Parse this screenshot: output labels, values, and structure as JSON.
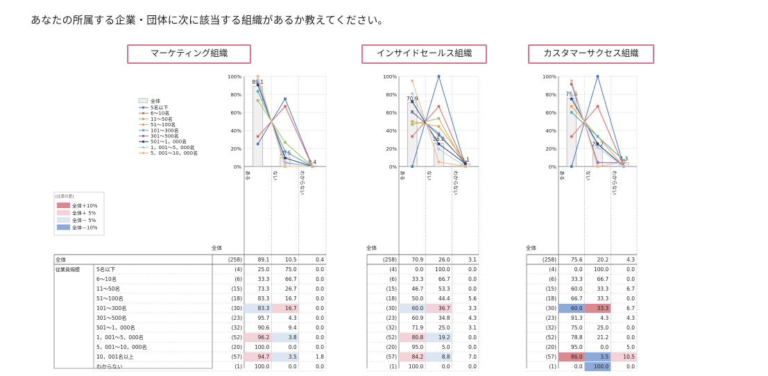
{
  "question": "あなたの所属する企業・団体に次に該当する組織があるか教えてください。",
  "legend": {
    "total_label": "全体",
    "series_labels": [
      "5名以下",
      "6～10名",
      "11～50名",
      "51～100名",
      "101～300名",
      "301～500名",
      "501～1，000名",
      "1，001～5，000名",
      "5，001～10，000名"
    ],
    "series_colors": [
      "#4472c4",
      "#e06060",
      "#9bbb59",
      "#f0a030",
      "#4bacc6",
      "#8064a2",
      "#1f3b6e",
      "#a8c8e8",
      "#f4b183"
    ]
  },
  "diff_legend": {
    "title": "[比率の差]",
    "items": [
      {
        "label": "全体＋10%",
        "color": "#d9898f"
      },
      {
        "label": "全体＋ 5%",
        "color": "#f2d4d8"
      },
      {
        "label": "全体－ 5%",
        "color": "#dce6f2"
      },
      {
        "label": "全体－10%",
        "color": "#8eaadb"
      }
    ]
  },
  "colors": {
    "frame": "#d9728c",
    "hi10": "#d9898f",
    "hi5": "#f2d4d8",
    "lo5": "#dce6f2",
    "lo10": "#8eaadb",
    "total_bar": "#f0f0f0"
  },
  "table_labels": {
    "zentai": "全体",
    "zentai_row": "全体",
    "group_label": "従業員規模",
    "rows": [
      "5名以下",
      "6～10名",
      "11～50名",
      "51～100名",
      "101～300名",
      "301～500名",
      "501～1，000名",
      "1，001～5，000名",
      "5，001～10，000名",
      "10，001名以上",
      "わからない"
    ]
  },
  "chart_data": [
    {
      "type": "bar",
      "title": "マーケティング組織",
      "categories": [
        "ある",
        "ない",
        "わからない"
      ],
      "ylim": [
        0,
        100
      ],
      "y_ticks": [
        "0%",
        "20%",
        "40%",
        "60%",
        "80%",
        "100%"
      ],
      "total": {
        "n": "(258)",
        "values": [
          89.1,
          10.5,
          0.4
        ]
      },
      "total_labels": [
        "89.1",
        "10.5",
        "0.4"
      ],
      "series": [
        {
          "n": "(4)",
          "values": [
            25.0,
            75.0,
            0.0
          ],
          "display": [
            "25.0",
            "75.0",
            "0.0"
          ],
          "hl": [
            "",
            "",
            ""
          ]
        },
        {
          "n": "(6)",
          "values": [
            33.3,
            66.7,
            0.0
          ],
          "display": [
            "33.3",
            "66.7",
            "0.0"
          ],
          "hl": [
            "",
            "",
            ""
          ]
        },
        {
          "n": "(15)",
          "values": [
            73.3,
            26.7,
            0.0
          ],
          "display": [
            "73.3",
            "26.7",
            "0.0"
          ],
          "hl": [
            "",
            "",
            ""
          ]
        },
        {
          "n": "(18)",
          "values": [
            83.3,
            16.7,
            0.0
          ],
          "display": [
            "83.3",
            "16.7",
            "0.0"
          ],
          "hl": [
            "",
            "",
            ""
          ]
        },
        {
          "n": "(30)",
          "values": [
            83.3,
            16.7,
            0.0
          ],
          "display": [
            "83.3",
            "16.7",
            "0.0"
          ],
          "hl": [
            "lo5",
            "hi5",
            ""
          ]
        },
        {
          "n": "(23)",
          "values": [
            95.7,
            4.3,
            0.0
          ],
          "display": [
            "95.7",
            "4.3",
            "0.0"
          ],
          "hl": [
            "",
            "",
            ""
          ]
        },
        {
          "n": "(32)",
          "values": [
            90.6,
            9.4,
            0.0
          ],
          "display": [
            "90.6",
            "9.4",
            "0.0"
          ],
          "hl": [
            "",
            "",
            ""
          ]
        },
        {
          "n": "(52)",
          "values": [
            96.2,
            3.8,
            0.0
          ],
          "display": [
            "96.2",
            "3.8",
            "0.0"
          ],
          "hl": [
            "hi5",
            "lo5",
            ""
          ]
        },
        {
          "n": "(20)",
          "values": [
            100.0,
            0.0,
            0.0
          ],
          "display": [
            "100.0",
            "0.0",
            "0.0"
          ],
          "hl": [
            "",
            "",
            ""
          ]
        }
      ],
      "extra_rows": [
        {
          "n": "(57)",
          "display": [
            "94.7",
            "3.5",
            "1.8"
          ],
          "hl": [
            "hi5",
            "lo5",
            ""
          ]
        },
        {
          "n": "(1)",
          "display": [
            "100.0",
            "0.0",
            "0.0"
          ],
          "hl": [
            "",
            "",
            ""
          ]
        }
      ]
    },
    {
      "type": "bar",
      "title": "インサイドセールス組織",
      "categories": [
        "ある",
        "ない",
        "わからない"
      ],
      "ylim": [
        0,
        100
      ],
      "y_ticks": [
        "0%",
        "20%",
        "40%",
        "60%",
        "80%",
        "100%"
      ],
      "total": {
        "n": "(258)",
        "values": [
          70.9,
          26.0,
          3.1
        ]
      },
      "total_labels": [
        "70.9",
        "26.0",
        "3.1"
      ],
      "series": [
        {
          "n": "(4)",
          "values": [
            0.0,
            100.0,
            0.0
          ],
          "display": [
            "0.0",
            "100.0",
            "0.0"
          ],
          "hl": [
            "",
            "",
            ""
          ]
        },
        {
          "n": "(6)",
          "values": [
            33.3,
            66.7,
            0.0
          ],
          "display": [
            "33.3",
            "66.7",
            "0.0"
          ],
          "hl": [
            "",
            "",
            ""
          ]
        },
        {
          "n": "(15)",
          "values": [
            46.7,
            53.3,
            0.0
          ],
          "display": [
            "46.7",
            "53.3",
            "0.0"
          ],
          "hl": [
            "",
            "",
            ""
          ]
        },
        {
          "n": "(18)",
          "values": [
            50.0,
            44.4,
            5.6
          ],
          "display": [
            "50.0",
            "44.4",
            "5.6"
          ],
          "hl": [
            "",
            "",
            ""
          ]
        },
        {
          "n": "(30)",
          "values": [
            60.0,
            36.7,
            3.3
          ],
          "display": [
            "60.0",
            "36.7",
            "3.3"
          ],
          "hl": [
            "lo5",
            "hi5",
            ""
          ]
        },
        {
          "n": "(23)",
          "values": [
            60.9,
            34.8,
            4.3
          ],
          "display": [
            "60.9",
            "34.8",
            "4.3"
          ],
          "hl": [
            "",
            "",
            ""
          ]
        },
        {
          "n": "(32)",
          "values": [
            71.9,
            25.0,
            3.1
          ],
          "display": [
            "71.9",
            "25.0",
            "3.1"
          ],
          "hl": [
            "",
            "",
            ""
          ]
        },
        {
          "n": "(52)",
          "values": [
            80.8,
            19.2,
            0.0
          ],
          "display": [
            "80.8",
            "19.2",
            "0.0"
          ],
          "hl": [
            "hi5",
            "lo5",
            ""
          ]
        },
        {
          "n": "(20)",
          "values": [
            95.0,
            5.0,
            0.0
          ],
          "display": [
            "95.0",
            "5.0",
            "0.0"
          ],
          "hl": [
            "",
            "",
            ""
          ]
        }
      ],
      "extra_rows": [
        {
          "n": "(57)",
          "display": [
            "84.2",
            "8.8",
            "7.0"
          ],
          "hl": [
            "hi5",
            "lo5",
            ""
          ]
        },
        {
          "n": "(1)",
          "display": [
            "100.0",
            "0.0",
            "0.0"
          ],
          "hl": [
            "",
            "",
            ""
          ]
        }
      ]
    },
    {
      "type": "bar",
      "title": "カスタマーサクセス組織",
      "categories": [
        "ある",
        "ない",
        "わからない"
      ],
      "ylim": [
        0,
        100
      ],
      "y_ticks": [
        "0%",
        "20%",
        "40%",
        "60%",
        "80%",
        "100%"
      ],
      "total": {
        "n": "(258)",
        "values": [
          75.6,
          20.2,
          4.3
        ]
      },
      "total_labels": [
        "75.6",
        "20.2",
        "4.3"
      ],
      "series": [
        {
          "n": "(4)",
          "values": [
            0.0,
            100.0,
            0.0
          ],
          "display": [
            "0.0",
            "100.0",
            "0.0"
          ],
          "hl": [
            "",
            "",
            ""
          ]
        },
        {
          "n": "(6)",
          "values": [
            33.3,
            66.7,
            0.0
          ],
          "display": [
            "33.3",
            "66.7",
            "0.0"
          ],
          "hl": [
            "",
            "",
            ""
          ]
        },
        {
          "n": "(15)",
          "values": [
            60.0,
            33.3,
            6.7
          ],
          "display": [
            "60.0",
            "33.3",
            "6.7"
          ],
          "hl": [
            "",
            "",
            ""
          ]
        },
        {
          "n": "(18)",
          "values": [
            66.7,
            33.3,
            0.0
          ],
          "display": [
            "66.7",
            "33.3",
            "0.0"
          ],
          "hl": [
            "",
            "",
            ""
          ]
        },
        {
          "n": "(30)",
          "values": [
            60.0,
            33.3,
            6.7
          ],
          "display": [
            "60.0",
            "33.3",
            "6.7"
          ],
          "hl": [
            "lo10",
            "hi10",
            ""
          ]
        },
        {
          "n": "(23)",
          "values": [
            91.3,
            4.3,
            4.3
          ],
          "display": [
            "91.3",
            "4.3",
            "4.3"
          ],
          "hl": [
            "",
            "",
            ""
          ]
        },
        {
          "n": "(32)",
          "values": [
            75.0,
            25.0,
            0.0
          ],
          "display": [
            "75.0",
            "25.0",
            "0.0"
          ],
          "hl": [
            "",
            "",
            ""
          ]
        },
        {
          "n": "(52)",
          "values": [
            78.8,
            21.2,
            0.0
          ],
          "display": [
            "78.8",
            "21.2",
            "0.0"
          ],
          "hl": [
            "",
            "",
            ""
          ]
        },
        {
          "n": "(20)",
          "values": [
            95.0,
            0.0,
            5.0
          ],
          "display": [
            "95.0",
            "0.0",
            "5.0"
          ],
          "hl": [
            "",
            "",
            ""
          ]
        }
      ],
      "extra_rows": [
        {
          "n": "(57)",
          "display": [
            "86.0",
            "3.5",
            "10.5"
          ],
          "hl": [
            "hi10",
            "lo10",
            "hi5"
          ]
        },
        {
          "n": "(1)",
          "display": [
            "0.0",
            "100.0",
            "0.0"
          ],
          "hl": [
            "",
            "lo10",
            ""
          ]
        }
      ]
    }
  ]
}
